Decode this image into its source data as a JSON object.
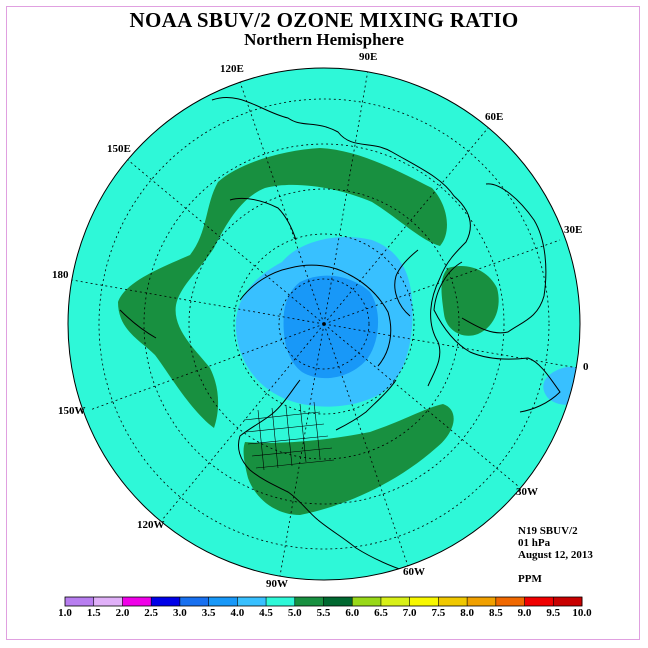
{
  "title": "NOAA SBUV/2 OZONE MIXING RATIO",
  "subtitle": "Northern Hemisphere",
  "longitude_labels": {
    "lon_90e": "90E",
    "lon_120e": "120E",
    "lon_60e": "60E",
    "lon_150e": "150E",
    "lon_30e": "30E",
    "lon_180": "180",
    "lon_0": "0",
    "lon_150w": "150W",
    "lon_30w": "30W",
    "lon_120w": "120W",
    "lon_60w": "60W",
    "lon_90w": "90W"
  },
  "info": {
    "instrument": "N19 SBUV/2",
    "level": "01 hPa",
    "date": "August 12, 2013",
    "units": "PPM"
  },
  "colorbar": {
    "ticks": [
      "1.0",
      "1.5",
      "2.0",
      "2.5",
      "3.0",
      "3.5",
      "4.0",
      "4.5",
      "5.0",
      "5.5",
      "6.0",
      "6.5",
      "7.0",
      "7.5",
      "8.0",
      "8.5",
      "9.0",
      "9.5",
      "10.0"
    ],
    "colors": [
      "#b87ef0",
      "#e0b0f8",
      "#f000e8",
      "#0000e8",
      "#1870f0",
      "#1898f8",
      "#38c0ff",
      "#2ef8d8",
      "#189040",
      "#006830",
      "#98d818",
      "#d8f018",
      "#f8f800",
      "#f0c800",
      "#f0a000",
      "#f06800",
      "#f00000",
      "#c80000",
      "#8b5a2b"
    ]
  },
  "colors": {
    "background_field": "#2ef8d8",
    "high_band": "#189040",
    "low_outer": "#38c0ff",
    "low_inner": "#1898f8"
  }
}
